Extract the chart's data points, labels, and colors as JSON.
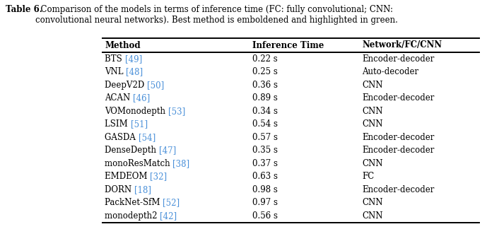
{
  "caption_bold": "Table 6.",
  "caption_rest": "  Comparison of the models in terms of inference time (FC: fully convolutional; CNN:\nconvolutional neural networks). Best method is emboldened and highlighted in green.",
  "headers": [
    "Method",
    "Inference Time",
    "Network/FC/CNN"
  ],
  "rows": [
    {
      "method_plain": "BTS ",
      "method_ref": "[49]",
      "time": "0.22 s",
      "network": "Encoder-decoder"
    },
    {
      "method_plain": "VNL ",
      "method_ref": "[48]",
      "time": "0.25 s",
      "network": "Auto-decoder"
    },
    {
      "method_plain": "DeepV2D ",
      "method_ref": "[50]",
      "time": "0.36 s",
      "network": "CNN"
    },
    {
      "method_plain": "ACAN ",
      "method_ref": "[46]",
      "time": "0.89 s",
      "network": "Encoder-decoder"
    },
    {
      "method_plain": "VOMonodepth ",
      "method_ref": "[53]",
      "time": "0.34 s",
      "network": "CNN"
    },
    {
      "method_plain": "LSIM ",
      "method_ref": "[51]",
      "time": "0.54 s",
      "network": "CNN"
    },
    {
      "method_plain": "GASDA ",
      "method_ref": "[54]",
      "time": "0.57 s",
      "network": "Encoder-decoder"
    },
    {
      "method_plain": "DenseDepth ",
      "method_ref": "[47]",
      "time": "0.35 s",
      "network": "Encoder-decoder"
    },
    {
      "method_plain": "monoResMatch ",
      "method_ref": "[38]",
      "time": "0.37 s",
      "network": "CNN"
    },
    {
      "method_plain": "EMDEOM ",
      "method_ref": "[32]",
      "time": "0.63 s",
      "network": "FC"
    },
    {
      "method_plain": "DORN ",
      "method_ref": "[18]",
      "time": "0.98 s",
      "network": "Encoder-decoder"
    },
    {
      "method_plain": "PackNet-SfM ",
      "method_ref": "[52]",
      "time": "0.97 s",
      "network": "CNN"
    },
    {
      "method_plain": "monodepth2 ",
      "method_ref": "[42]",
      "time": "0.56 s",
      "network": "CNN"
    }
  ],
  "ref_color": "#4A90D9",
  "bg_color": "#ffffff",
  "text_color": "#000000",
  "body_fontsize": 8.5,
  "header_fontsize": 8.5,
  "caption_fontsize": 8.5
}
